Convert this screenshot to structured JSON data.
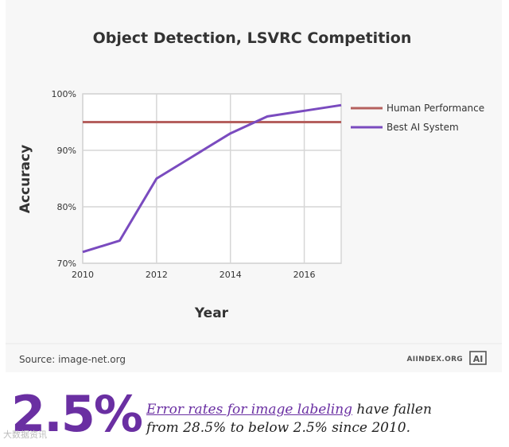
{
  "chart_data": {
    "type": "line",
    "title": "Object Detection, LSVRC Competition",
    "xlabel": "Year",
    "ylabel": "Accuracy",
    "xlim": [
      2010,
      2017
    ],
    "ylim": [
      70,
      100
    ],
    "x_ticks": [
      "2010",
      "2012",
      "2014",
      "2016"
    ],
    "y_ticks": [
      "70%",
      "80%",
      "90%",
      "100%"
    ],
    "grid": true,
    "legend_position": "right",
    "series": [
      {
        "name": "Human Performance",
        "color": "#b5605e",
        "points": [
          [
            2010,
            95
          ],
          [
            2017,
            95
          ]
        ]
      },
      {
        "name": "Best AI System",
        "color": "#7a4bbf",
        "points": [
          [
            2010,
            72
          ],
          [
            2011,
            74
          ],
          [
            2012,
            85
          ],
          [
            2013,
            89
          ],
          [
            2014,
            93
          ],
          [
            2015,
            96
          ],
          [
            2016,
            97
          ],
          [
            2017,
            98
          ]
        ]
      }
    ],
    "source": "Source: image-net.org",
    "brand": "AIINDEX.ORG",
    "brand_logo": "AI"
  },
  "highlight": {
    "stat": "2.5%",
    "desc_link": "Error rates for image labeling",
    "desc_rest": " have fallen from 28.5% to below 2.5% since 2010."
  },
  "watermark": "大数据资讯"
}
